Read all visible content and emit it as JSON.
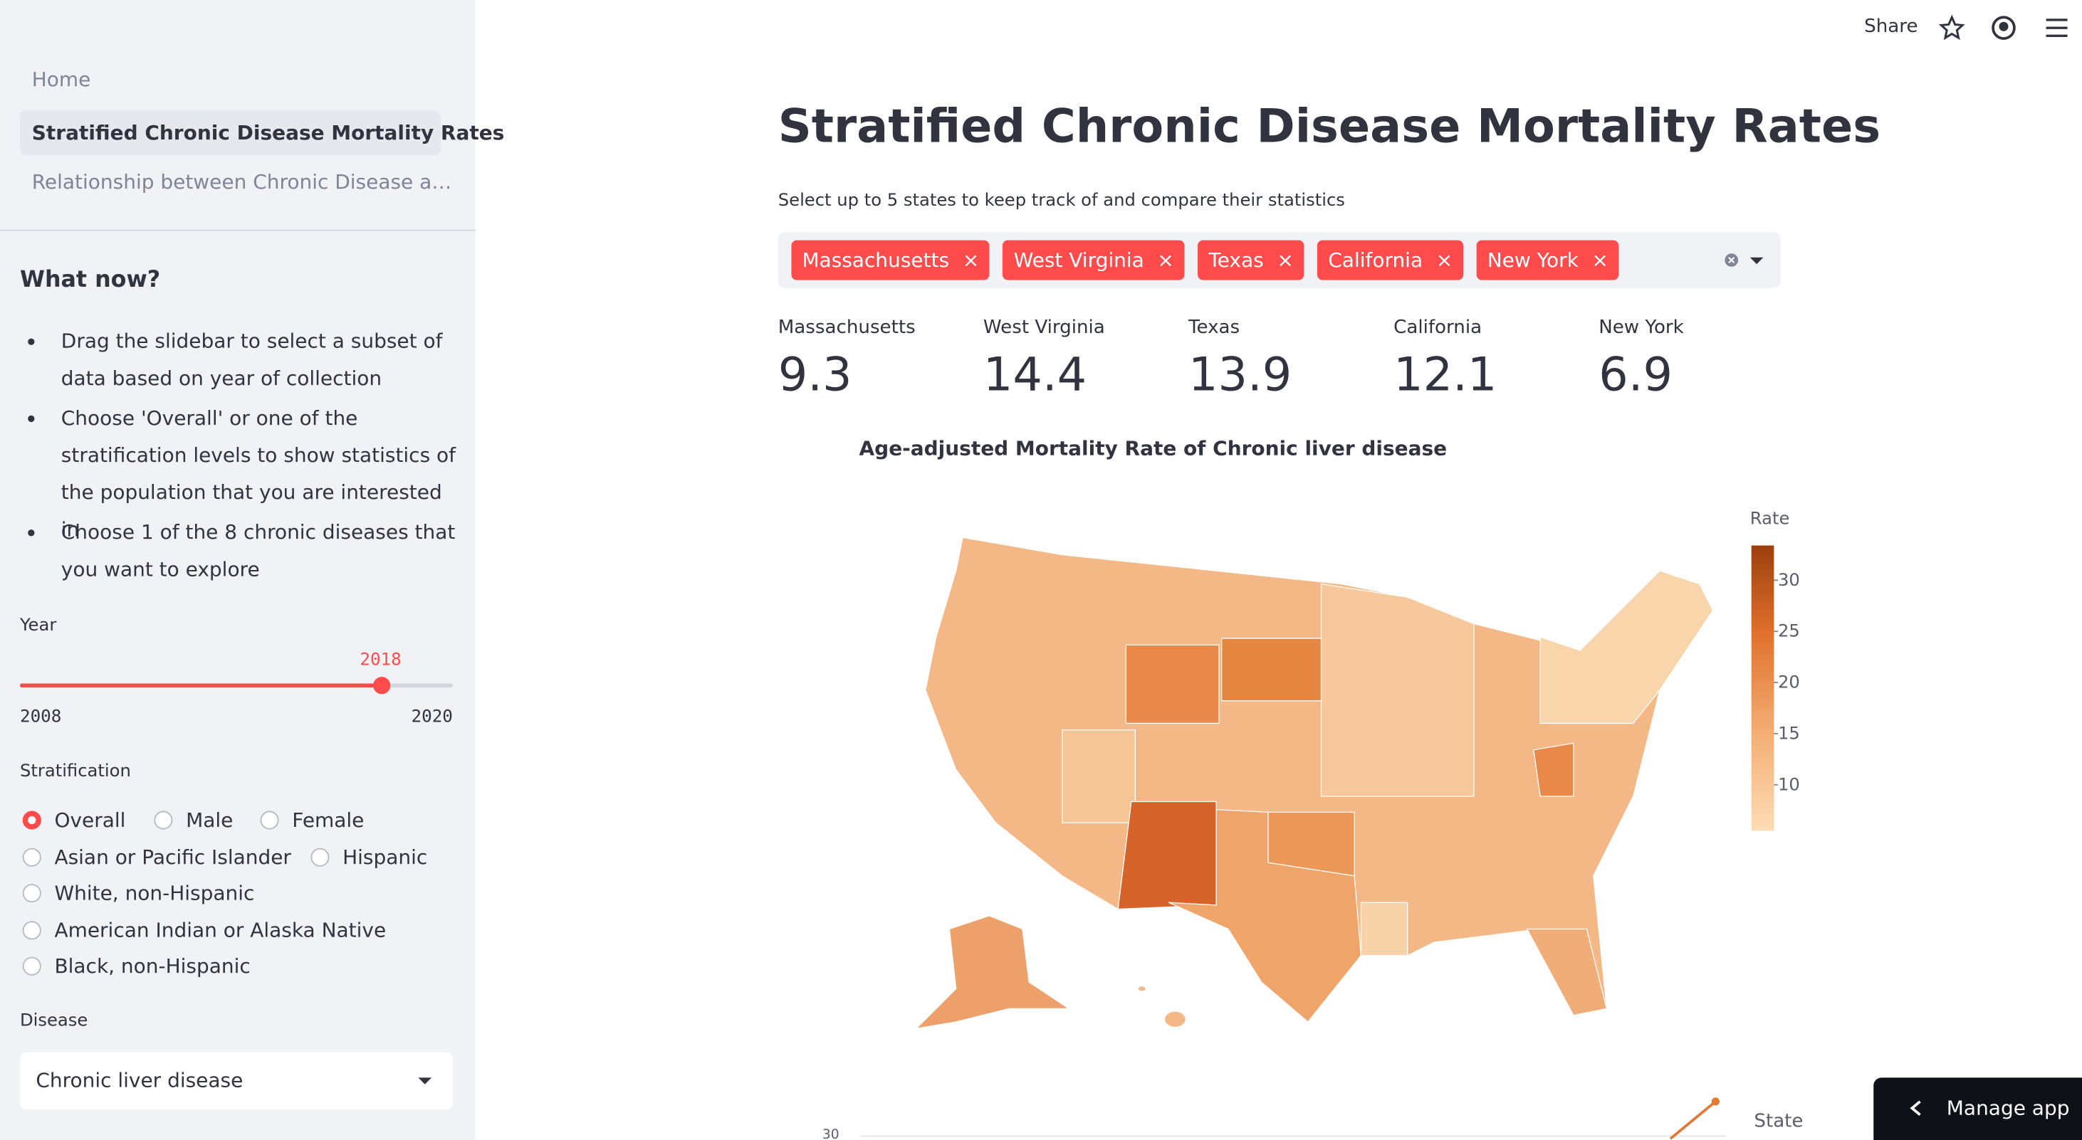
{
  "header": {
    "share": "Share"
  },
  "sidebar": {
    "nav": [
      "Home",
      "Stratified Chronic Disease Mortality Rates",
      "Relationship between Chronic Disease a…"
    ],
    "what_now": {
      "title": "What now?",
      "items": [
        "Drag the slidebar to select a subset of data based on year of collection",
        "Choose 'Overall' or one of the stratification levels to show statistics of the population that you are interested in",
        "Choose 1 of the 8 chronic diseases that you want to explore"
      ]
    },
    "year": {
      "label": "Year",
      "value": 2018,
      "min": 2008,
      "max": 2020
    },
    "stratification": {
      "label": "Stratification",
      "options": [
        "Overall",
        "Male",
        "Female",
        "Asian or Pacific Islander",
        "Hispanic",
        "White, non-Hispanic",
        "American Indian or Alaska Native",
        "Black, non-Hispanic"
      ],
      "selected": "Overall"
    },
    "disease": {
      "label": "Disease",
      "value": "Chronic liver disease"
    }
  },
  "main": {
    "title": "Stratified Chronic Disease Mortality Rates",
    "select_label": "Select up to 5 states to keep track of and compare their statistics",
    "selected_states": [
      "Massachusetts",
      "West Virginia",
      "Texas",
      "California",
      "New York"
    ],
    "metrics": [
      {
        "label": "Massachusetts",
        "value": 9.3
      },
      {
        "label": "West Virginia",
        "value": 14.4
      },
      {
        "label": "Texas",
        "value": 13.9
      },
      {
        "label": "California",
        "value": 12.1
      },
      {
        "label": "New York",
        "value": 6.9
      }
    ],
    "map": {
      "title": "Age-adjusted Mortality Rate of Chronic liver disease",
      "colorbar": {
        "title": "Rate",
        "range": [
          5.5,
          33.4
        ],
        "ticks": [
          10,
          15,
          20,
          25,
          30
        ]
      }
    },
    "bottom_chart": {
      "ytick": 30,
      "legend_title": "State"
    }
  },
  "manage_app": "Manage app"
}
